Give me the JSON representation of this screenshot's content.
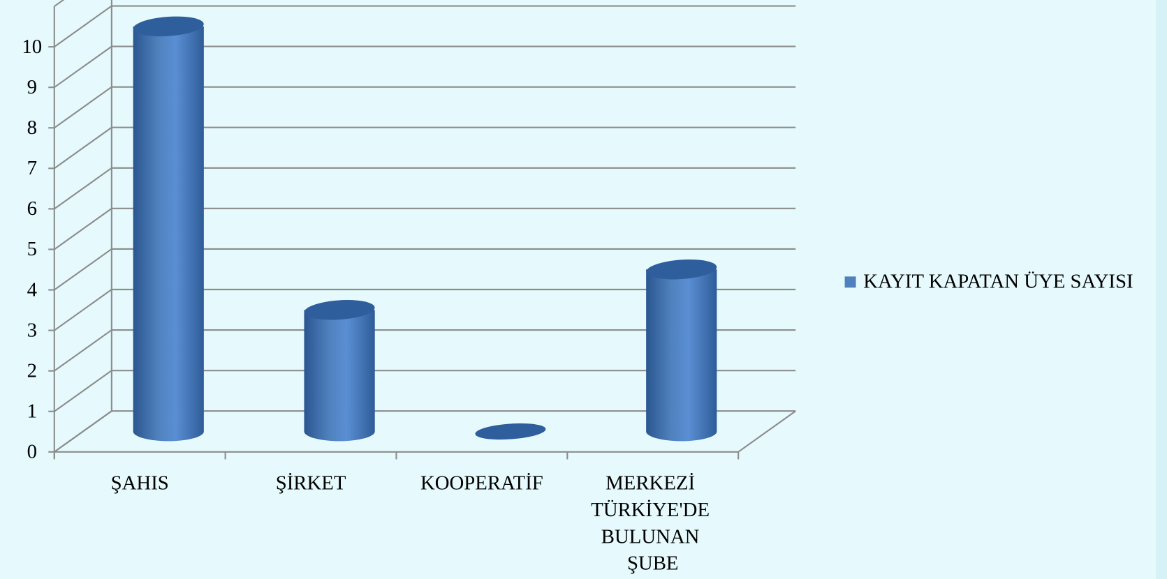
{
  "chart_data": {
    "type": "bar",
    "categories": [
      "ŞAHIS",
      "ŞİRKET",
      "KOOPERATİF",
      "MERKEZİ TÜRKİYE'DE BULUNAN ŞUBE"
    ],
    "series": [
      {
        "name": "KAYIT KAPATAN ÜYE SAYISI",
        "color": "#4f81bd",
        "values": [
          10,
          3,
          0,
          4
        ]
      }
    ],
    "ylim": [
      0,
      11
    ],
    "yticks": [
      0,
      1,
      2,
      3,
      4,
      5,
      6,
      7,
      8,
      9,
      10
    ],
    "grid": true,
    "legend": "right"
  }
}
